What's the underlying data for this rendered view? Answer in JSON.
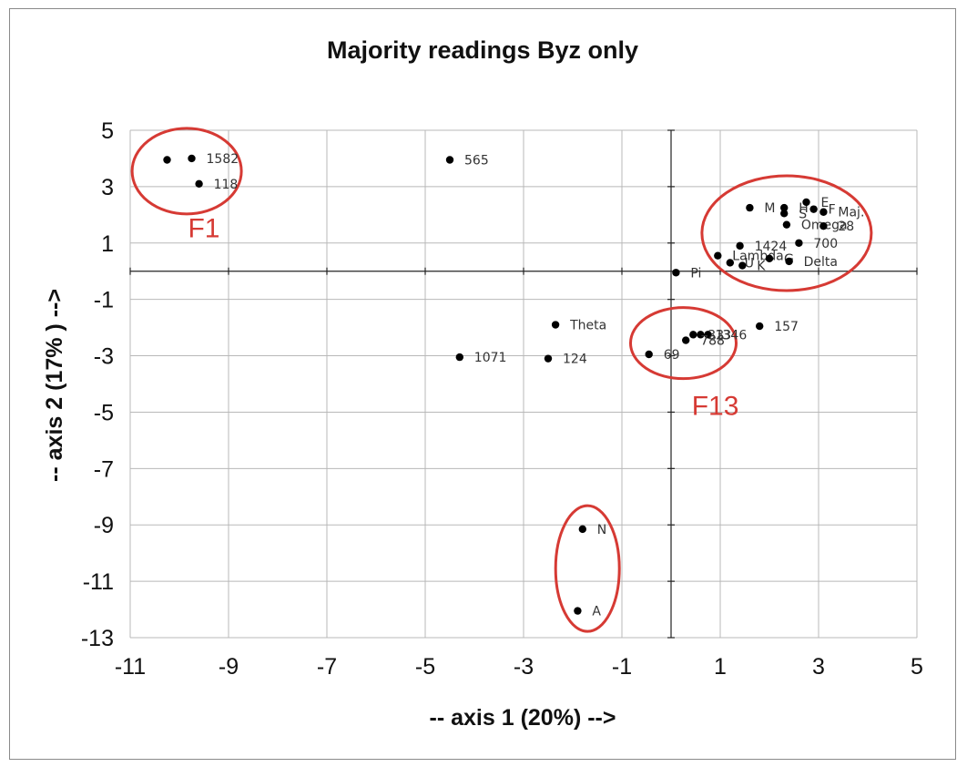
{
  "chart_data": {
    "type": "scatter",
    "title": "Majority readings Byz only",
    "xlabel": "-- axis 1 (20%) -->",
    "ylabel": "-- axis 2 (17% ) -->",
    "xlim": [
      -11,
      5
    ],
    "ylim": [
      -13,
      5
    ],
    "xticks": [
      -11,
      -9,
      -7,
      -5,
      -3,
      -1,
      1,
      3,
      5
    ],
    "yticks": [
      5,
      3,
      1,
      -1,
      -3,
      -5,
      -7,
      -9,
      -11,
      -13
    ],
    "xtick_labels": [
      "-11",
      "-9",
      "-7",
      "-5",
      "-3",
      "-1",
      "1",
      "3",
      "5"
    ],
    "ytick_labels": [
      "5",
      "3",
      "1",
      "-1",
      "-3",
      "-5",
      "-7",
      "-9",
      "-11",
      "-13"
    ],
    "grid": true,
    "points": [
      {
        "x": -10.25,
        "y": 3.95,
        "label": ""
      },
      {
        "x": -9.75,
        "y": 4.0,
        "label": "1582"
      },
      {
        "x": -9.6,
        "y": 3.1,
        "label": "118"
      },
      {
        "x": -4.5,
        "y": 3.95,
        "label": "565"
      },
      {
        "x": 1.6,
        "y": 2.25,
        "label": "M"
      },
      {
        "x": 2.3,
        "y": 2.25,
        "label": "H"
      },
      {
        "x": 2.75,
        "y": 2.45,
        "label": "E"
      },
      {
        "x": 2.3,
        "y": 2.05,
        "label": "S"
      },
      {
        "x": 2.9,
        "y": 2.2,
        "label": "F"
      },
      {
        "x": 3.1,
        "y": 2.1,
        "label": "Maj."
      },
      {
        "x": 2.35,
        "y": 1.65,
        "label": "Omega"
      },
      {
        "x": 3.1,
        "y": 1.6,
        "label": "28"
      },
      {
        "x": 1.4,
        "y": 0.9,
        "label": "1424"
      },
      {
        "x": 2.6,
        "y": 1.0,
        "label": "700"
      },
      {
        "x": 0.95,
        "y": 0.55,
        "label": "Lambda"
      },
      {
        "x": 1.2,
        "y": 0.3,
        "label": "U"
      },
      {
        "x": 1.45,
        "y": 0.2,
        "label": "K"
      },
      {
        "x": 2.0,
        "y": 0.45,
        "label": "G"
      },
      {
        "x": 2.4,
        "y": 0.35,
        "label": "Delta"
      },
      {
        "x": 0.1,
        "y": -0.05,
        "label": "Pi"
      },
      {
        "x": -2.35,
        "y": -1.9,
        "label": "Theta"
      },
      {
        "x": 1.8,
        "y": -1.95,
        "label": "157"
      },
      {
        "x": 0.45,
        "y": -2.25,
        "label": "33"
      },
      {
        "x": 0.6,
        "y": -2.25,
        "label": "13"
      },
      {
        "x": 0.75,
        "y": -2.25,
        "label": "346"
      },
      {
        "x": 0.3,
        "y": -2.45,
        "label": "788"
      },
      {
        "x": -0.45,
        "y": -2.95,
        "label": "69"
      },
      {
        "x": -4.3,
        "y": -3.05,
        "label": "1071"
      },
      {
        "x": -2.5,
        "y": -3.1,
        "label": "124"
      },
      {
        "x": -1.8,
        "y": -9.15,
        "label": "N"
      },
      {
        "x": -1.9,
        "y": -12.05,
        "label": "A"
      }
    ],
    "annotations": [
      {
        "text": "F1"
      },
      {
        "text": "F13"
      }
    ],
    "colors": {
      "points": "#000000",
      "annotation": "#d63a34",
      "grid": "#b8b8b8"
    }
  }
}
